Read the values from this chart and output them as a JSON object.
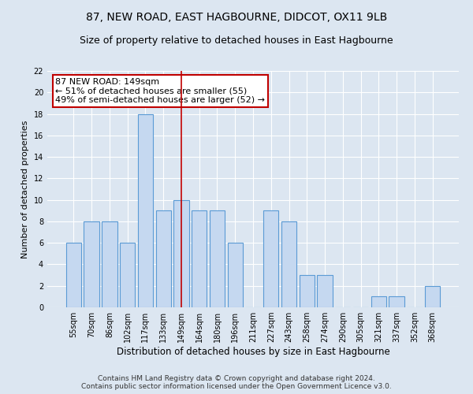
{
  "title1": "87, NEW ROAD, EAST HAGBOURNE, DIDCOT, OX11 9LB",
  "title2": "Size of property relative to detached houses in East Hagbourne",
  "xlabel": "Distribution of detached houses by size in East Hagbourne",
  "ylabel": "Number of detached properties",
  "categories": [
    "55sqm",
    "70sqm",
    "86sqm",
    "102sqm",
    "117sqm",
    "133sqm",
    "149sqm",
    "164sqm",
    "180sqm",
    "196sqm",
    "211sqm",
    "227sqm",
    "243sqm",
    "258sqm",
    "274sqm",
    "290sqm",
    "305sqm",
    "321sqm",
    "337sqm",
    "352sqm",
    "368sqm"
  ],
  "values": [
    6,
    8,
    8,
    6,
    18,
    9,
    10,
    9,
    9,
    6,
    0,
    9,
    8,
    3,
    3,
    0,
    0,
    1,
    1,
    0,
    2
  ],
  "bar_color": "#c5d8f0",
  "bar_edge_color": "#5b9bd5",
  "highlight_index": 6,
  "highlight_line_color": "#c00000",
  "annotation_text": "87 NEW ROAD: 149sqm\n← 51% of detached houses are smaller (55)\n49% of semi-detached houses are larger (52) →",
  "annotation_box_color": "#ffffff",
  "annotation_box_edge": "#c00000",
  "ylim": [
    0,
    22
  ],
  "yticks": [
    0,
    2,
    4,
    6,
    8,
    10,
    12,
    14,
    16,
    18,
    20,
    22
  ],
  "background_color": "#dce6f1",
  "plot_bg_color": "#dce6f1",
  "footer1": "Contains HM Land Registry data © Crown copyright and database right 2024.",
  "footer2": "Contains public sector information licensed under the Open Government Licence v3.0.",
  "title1_fontsize": 10,
  "title2_fontsize": 9,
  "xlabel_fontsize": 8.5,
  "ylabel_fontsize": 8,
  "tick_fontsize": 7,
  "annotation_fontsize": 8,
  "footer_fontsize": 6.5
}
